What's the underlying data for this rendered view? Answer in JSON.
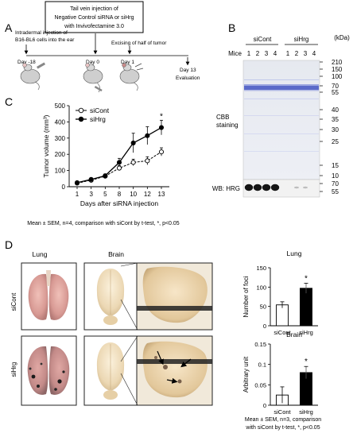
{
  "panelA": {
    "letter": "A",
    "tail_vein_line1": "Tail vein injection of",
    "tail_vein_line2": "Negative Control siRNA or siHrg",
    "tail_vein_line3": "with Invivofectamine 3.0",
    "intradermal_line1": "Intradermal injection of",
    "intradermal_line2": "B16-BL6 cells into the ear",
    "excising": "Excising of half of tumor",
    "days": [
      "Day -18",
      "Day 0",
      "Day 1",
      "Day 13"
    ],
    "evaluation": "Evaluation"
  },
  "panelB": {
    "letter": "B",
    "group1": "siCont",
    "group2": "siHrg",
    "mice_label": "Mice",
    "lanes": [
      "1",
      "2",
      "3",
      "4",
      "1",
      "2",
      "3",
      "4"
    ],
    "kda_label": "(kDa)",
    "markers": [
      "210",
      "150",
      "100",
      "70",
      "55",
      "40",
      "35",
      "30",
      "25",
      "15",
      "10"
    ],
    "cbb_line1": "CBB",
    "cbb_line2": "staining",
    "wb_label": "WB: HRG",
    "wb_markers": [
      "70",
      "55"
    ]
  },
  "panelC": {
    "letter": "C",
    "caption": "Mean ± SEM, n=4, comparison with siCont by t-test, *, p<0.05",
    "significance": "*"
  },
  "chart_data": [
    {
      "type": "line",
      "xlabel": "Days after siRNA injection",
      "ylabel": "Tumor volume (mm³)",
      "x": [
        1,
        3,
        5,
        8,
        10,
        12,
        13
      ],
      "xticks": [
        "1",
        "3",
        "5",
        "8",
        "10",
        "12",
        "13"
      ],
      "yticks": [
        "0",
        "100",
        "200",
        "300",
        "400",
        "500"
      ],
      "ylim": [
        0,
        500
      ],
      "series": [
        {
          "name": "siCont",
          "values": [
            22,
            40,
            65,
            115,
            150,
            160,
            215
          ],
          "err": [
            5,
            6,
            8,
            15,
            20,
            25,
            25
          ],
          "marker": "open-circle"
        },
        {
          "name": "siHrg",
          "values": [
            25,
            45,
            68,
            150,
            270,
            315,
            365
          ],
          "err": [
            5,
            7,
            10,
            25,
            60,
            55,
            45
          ],
          "marker": "filled-circle"
        }
      ],
      "legend": "top-left",
      "annotation": "*"
    },
    {
      "type": "bar",
      "title": "Lung",
      "categories": [
        "siCont",
        "siHrg"
      ],
      "values": [
        54,
        97
      ],
      "err": [
        8,
        13
      ],
      "ylabel": "Number of foci",
      "yticks": [
        "0",
        "50",
        "100",
        "150"
      ],
      "ylim": [
        0,
        150
      ],
      "colors": [
        "#ffffff",
        "#000000"
      ],
      "annotation": "*"
    },
    {
      "type": "bar",
      "title": "Brain",
      "categories": [
        "siCont",
        "siHrg"
      ],
      "values": [
        0.025,
        0.08
      ],
      "err": [
        0.02,
        0.015
      ],
      "ylabel": "Arbitrary unit",
      "yticks": [
        "0",
        "0.05",
        "0.1",
        "0.15"
      ],
      "ylim": [
        0,
        0.15
      ],
      "colors": [
        "#ffffff",
        "#000000"
      ],
      "annotation": "*"
    }
  ],
  "panelD": {
    "letter": "D",
    "lung_label": "Lung",
    "brain_label": "Brain",
    "row1": "siCont",
    "row2": "siHrg",
    "caption_line1": "Mean ± SEM, n=3, comparison",
    "caption_line2": "with siCont by t-test, *, p<0.05"
  }
}
